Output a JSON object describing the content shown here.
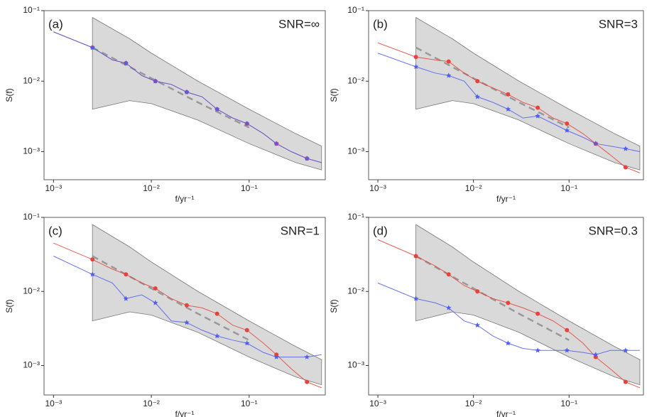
{
  "chart_data": [
    {
      "type": "line",
      "title": "(a)",
      "annotation": "SNR=∞",
      "xlabel": "f/yr⁻¹",
      "ylabel": "S(f)",
      "log_scale": true,
      "xlim": [
        0.0008,
        0.6
      ],
      "ylim": [
        0.0004,
        0.1
      ],
      "xticks": [
        {
          "value": 0.001,
          "label": "10⁻³"
        },
        {
          "value": 0.01,
          "label": "10⁻²"
        },
        {
          "value": 0.1,
          "label": "10⁻¹"
        }
      ],
      "yticks": [
        {
          "value": 0.001,
          "label": "10⁻³"
        },
        {
          "value": 0.01,
          "label": "10⁻²"
        },
        {
          "value": 0.1,
          "label": "10⁻¹"
        }
      ],
      "x": [
        0.001,
        0.0025,
        0.004,
        0.0055,
        0.008,
        0.011,
        0.016,
        0.023,
        0.033,
        0.047,
        0.068,
        0.095,
        0.14,
        0.19,
        0.27,
        0.39,
        0.55
      ],
      "series": [
        {
          "color": "#e8423a",
          "values": [
            0.05,
            0.03,
            0.02,
            0.018,
            0.012,
            0.01,
            0.009,
            0.007,
            0.006,
            0.004,
            0.003,
            0.0025,
            0.0018,
            0.0013,
            0.001,
            0.0008,
            0.0007
          ]
        },
        {
          "color": "#4f5df0",
          "values": [
            0.05,
            0.03,
            0.02,
            0.018,
            0.012,
            0.01,
            0.009,
            0.007,
            0.006,
            0.004,
            0.003,
            0.0025,
            0.0018,
            0.0013,
            0.001,
            0.0008,
            0.0007
          ]
        }
      ],
      "band": {
        "color": "#d9d9d9",
        "x": [
          0.0025,
          0.006,
          0.01,
          0.03,
          0.1,
          0.3,
          0.55
        ],
        "upper": [
          0.08,
          0.04,
          0.025,
          0.01,
          0.004,
          0.0018,
          0.0012
        ],
        "lower": [
          0.004,
          0.0053,
          0.0048,
          0.0028,
          0.0013,
          0.0007,
          0.00055
        ]
      },
      "mean": {
        "color": "#999999",
        "x": [
          0.0025,
          0.01,
          0.03,
          0.1
        ],
        "values": [
          0.03,
          0.011,
          0.005,
          0.0022
        ]
      }
    },
    {
      "type": "line",
      "title": "(b)",
      "annotation": "SNR=3",
      "xlabel": "f/yr⁻¹",
      "ylabel": "S(f)",
      "log_scale": true,
      "xlim": [
        0.0008,
        0.6
      ],
      "ylim": [
        0.0004,
        0.1
      ],
      "xticks": [
        {
          "value": 0.001,
          "label": "10⁻³"
        },
        {
          "value": 0.01,
          "label": "10⁻²"
        },
        {
          "value": 0.1,
          "label": "10⁻¹"
        }
      ],
      "yticks": [
        {
          "value": 0.001,
          "label": "10⁻³"
        },
        {
          "value": 0.01,
          "label": "10⁻²"
        },
        {
          "value": 0.1,
          "label": "10⁻¹"
        }
      ],
      "x": [
        0.001,
        0.0025,
        0.004,
        0.0055,
        0.008,
        0.011,
        0.016,
        0.023,
        0.033,
        0.047,
        0.068,
        0.095,
        0.14,
        0.19,
        0.27,
        0.39,
        0.55
      ],
      "series": [
        {
          "color": "#e8423a",
          "values": [
            0.035,
            0.022,
            0.02,
            0.019,
            0.013,
            0.01,
            0.008,
            0.0065,
            0.005,
            0.0042,
            0.003,
            0.0025,
            0.0018,
            0.0013,
            0.0009,
            0.0006,
            0.0005
          ]
        },
        {
          "color": "#4f5df0",
          "values": [
            0.025,
            0.016,
            0.013,
            0.012,
            0.01,
            0.006,
            0.005,
            0.004,
            0.003,
            0.0032,
            0.0025,
            0.002,
            0.0016,
            0.0013,
            0.0012,
            0.0011,
            0.001
          ]
        }
      ],
      "band": {
        "color": "#d9d9d9",
        "x": [
          0.0025,
          0.006,
          0.01,
          0.03,
          0.1,
          0.3,
          0.55
        ],
        "upper": [
          0.08,
          0.04,
          0.025,
          0.01,
          0.004,
          0.0018,
          0.0012
        ],
        "lower": [
          0.004,
          0.0053,
          0.0048,
          0.0028,
          0.0013,
          0.0007,
          0.00055
        ]
      },
      "mean": {
        "color": "#999999",
        "x": [
          0.0025,
          0.01,
          0.03,
          0.1
        ],
        "values": [
          0.03,
          0.011,
          0.005,
          0.0022
        ]
      }
    },
    {
      "type": "line",
      "title": "(c)",
      "annotation": "SNR=1",
      "xlabel": "f/yr⁻¹",
      "ylabel": "S(f)",
      "log_scale": true,
      "xlim": [
        0.0008,
        0.6
      ],
      "ylim": [
        0.0004,
        0.1
      ],
      "xticks": [
        {
          "value": 0.001,
          "label": "10⁻³"
        },
        {
          "value": 0.01,
          "label": "10⁻²"
        },
        {
          "value": 0.1,
          "label": "10⁻¹"
        }
      ],
      "yticks": [
        {
          "value": 0.001,
          "label": "10⁻³"
        },
        {
          "value": 0.01,
          "label": "10⁻²"
        },
        {
          "value": 0.1,
          "label": "10⁻¹"
        }
      ],
      "x": [
        0.001,
        0.0025,
        0.004,
        0.0055,
        0.008,
        0.011,
        0.016,
        0.023,
        0.033,
        0.047,
        0.068,
        0.095,
        0.14,
        0.19,
        0.27,
        0.39,
        0.55
      ],
      "series": [
        {
          "color": "#e8423a",
          "values": [
            0.045,
            0.027,
            0.02,
            0.017,
            0.013,
            0.011,
            0.008,
            0.0065,
            0.006,
            0.005,
            0.0035,
            0.003,
            0.002,
            0.0014,
            0.0009,
            0.0006,
            0.0005
          ]
        },
        {
          "color": "#4f5df0",
          "values": [
            0.03,
            0.017,
            0.013,
            0.008,
            0.009,
            0.007,
            0.004,
            0.0038,
            0.003,
            0.0025,
            0.0022,
            0.002,
            0.0015,
            0.0013,
            0.0013,
            0.0013,
            0.0014
          ]
        }
      ],
      "band": {
        "color": "#d9d9d9",
        "x": [
          0.0025,
          0.006,
          0.01,
          0.03,
          0.1,
          0.3,
          0.55
        ],
        "upper": [
          0.08,
          0.04,
          0.025,
          0.01,
          0.004,
          0.0018,
          0.0012
        ],
        "lower": [
          0.004,
          0.0053,
          0.0048,
          0.0028,
          0.0013,
          0.0007,
          0.00055
        ]
      },
      "mean": {
        "color": "#999999",
        "x": [
          0.0025,
          0.01,
          0.03,
          0.1
        ],
        "values": [
          0.03,
          0.011,
          0.005,
          0.0022
        ]
      }
    },
    {
      "type": "line",
      "title": "(d)",
      "annotation": "SNR=0.3",
      "xlabel": "f/yr⁻¹",
      "ylabel": "S(f)",
      "log_scale": true,
      "xlim": [
        0.0008,
        0.6
      ],
      "ylim": [
        0.0004,
        0.1
      ],
      "xticks": [
        {
          "value": 0.001,
          "label": "10⁻³"
        },
        {
          "value": 0.01,
          "label": "10⁻²"
        },
        {
          "value": 0.1,
          "label": "10⁻¹"
        }
      ],
      "yticks": [
        {
          "value": 0.001,
          "label": "10⁻³"
        },
        {
          "value": 0.01,
          "label": "10⁻²"
        },
        {
          "value": 0.1,
          "label": "10⁻¹"
        }
      ],
      "x": [
        0.001,
        0.0025,
        0.004,
        0.0055,
        0.008,
        0.011,
        0.016,
        0.023,
        0.033,
        0.047,
        0.068,
        0.095,
        0.14,
        0.19,
        0.27,
        0.39,
        0.55
      ],
      "series": [
        {
          "color": "#e8423a",
          "values": [
            0.05,
            0.03,
            0.022,
            0.017,
            0.012,
            0.01,
            0.008,
            0.007,
            0.006,
            0.005,
            0.004,
            0.003,
            0.002,
            0.0013,
            0.0009,
            0.0006,
            0.0005
          ]
        },
        {
          "color": "#4f5df0",
          "values": [
            0.013,
            0.008,
            0.007,
            0.006,
            0.004,
            0.0035,
            0.0025,
            0.002,
            0.0017,
            0.0016,
            0.0016,
            0.0016,
            0.0015,
            0.0014,
            0.0016,
            0.0016,
            0.0016
          ]
        }
      ],
      "band": {
        "color": "#d9d9d9",
        "x": [
          0.0025,
          0.006,
          0.01,
          0.03,
          0.1,
          0.3,
          0.55
        ],
        "upper": [
          0.08,
          0.04,
          0.025,
          0.01,
          0.004,
          0.0018,
          0.0012
        ],
        "lower": [
          0.004,
          0.0053,
          0.0048,
          0.0028,
          0.0013,
          0.0007,
          0.00055
        ]
      },
      "mean": {
        "color": "#999999",
        "x": [
          0.0025,
          0.01,
          0.03,
          0.1
        ],
        "values": [
          0.03,
          0.011,
          0.005,
          0.0022
        ]
      }
    }
  ]
}
